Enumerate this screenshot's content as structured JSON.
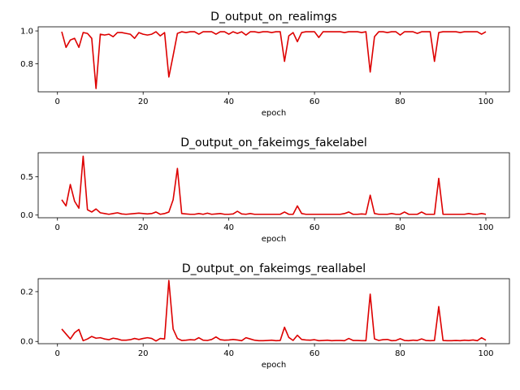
{
  "chart_data": [
    {
      "type": "line",
      "title": "D_output_on_realimgs",
      "xlabel": "epoch",
      "ylabel": "",
      "xlim": [
        -4.5,
        105.5
      ],
      "ylim": [
        0.63,
        1.025
      ],
      "xticks": [
        0,
        20,
        40,
        60,
        80,
        100
      ],
      "yticks": [
        0.8,
        1.0
      ],
      "xtick_labels": [
        "0",
        "20",
        "40",
        "60",
        "80",
        "100"
      ],
      "ytick_labels": [
        "0.8",
        "1.0"
      ],
      "grid": false,
      "color": "#dd0000",
      "x": [
        1,
        2,
        3,
        4,
        5,
        6,
        7,
        8,
        9,
        10,
        11,
        12,
        13,
        14,
        15,
        16,
        17,
        18,
        19,
        20,
        21,
        22,
        23,
        24,
        25,
        26,
        27,
        28,
        29,
        30,
        31,
        32,
        33,
        34,
        35,
        36,
        37,
        38,
        39,
        40,
        41,
        42,
        43,
        44,
        45,
        46,
        47,
        48,
        49,
        50,
        51,
        52,
        53,
        54,
        55,
        56,
        57,
        58,
        59,
        60,
        61,
        62,
        63,
        64,
        65,
        66,
        67,
        68,
        69,
        70,
        71,
        72,
        73,
        74,
        75,
        76,
        77,
        78,
        79,
        80,
        81,
        82,
        83,
        84,
        85,
        86,
        87,
        88,
        89,
        90,
        91,
        92,
        93,
        94,
        95,
        96,
        97,
        98,
        99,
        100
      ],
      "values": [
        0.995,
        0.9,
        0.945,
        0.955,
        0.9,
        0.99,
        0.985,
        0.955,
        0.65,
        0.98,
        0.975,
        0.98,
        0.965,
        0.99,
        0.99,
        0.985,
        0.98,
        0.955,
        0.99,
        0.98,
        0.975,
        0.98,
        0.995,
        0.97,
        0.99,
        0.72,
        0.85,
        0.985,
        0.995,
        0.99,
        0.995,
        0.995,
        0.98,
        0.995,
        0.995,
        0.995,
        0.98,
        0.995,
        0.995,
        0.98,
        0.995,
        0.985,
        0.995,
        0.975,
        0.995,
        0.995,
        0.99,
        0.995,
        0.995,
        0.99,
        0.995,
        0.995,
        0.815,
        0.97,
        0.99,
        0.935,
        0.99,
        0.995,
        0.995,
        0.995,
        0.96,
        0.995,
        0.995,
        0.995,
        0.995,
        0.995,
        0.99,
        0.995,
        0.995,
        0.995,
        0.99,
        0.995,
        0.75,
        0.965,
        0.995,
        0.995,
        0.99,
        0.995,
        0.995,
        0.975,
        0.995,
        0.995,
        0.995,
        0.985,
        0.995,
        0.995,
        0.995,
        0.815,
        0.99,
        0.995,
        0.995,
        0.995,
        0.995,
        0.99,
        0.995,
        0.995,
        0.995,
        0.995,
        0.98,
        0.995
      ]
    },
    {
      "type": "line",
      "title": "D_output_on_fakeimgs_fakelabel",
      "xlabel": "epoch",
      "ylabel": "",
      "xlim": [
        -4.5,
        105.5
      ],
      "ylim": [
        -0.035,
        0.815
      ],
      "xticks": [
        0,
        20,
        40,
        60,
        80,
        100
      ],
      "yticks": [
        0.0,
        0.5
      ],
      "xtick_labels": [
        "0",
        "20",
        "40",
        "60",
        "80",
        "100"
      ],
      "ytick_labels": [
        "0.0",
        "0.5"
      ],
      "grid": false,
      "color": "#dd0000",
      "x": [
        1,
        2,
        3,
        4,
        5,
        6,
        7,
        8,
        9,
        10,
        11,
        12,
        13,
        14,
        15,
        16,
        17,
        18,
        19,
        20,
        21,
        22,
        23,
        24,
        25,
        26,
        27,
        28,
        29,
        30,
        31,
        32,
        33,
        34,
        35,
        36,
        37,
        38,
        39,
        40,
        41,
        42,
        43,
        44,
        45,
        46,
        47,
        48,
        49,
        50,
        51,
        52,
        53,
        54,
        55,
        56,
        57,
        58,
        59,
        60,
        61,
        62,
        63,
        64,
        65,
        66,
        67,
        68,
        69,
        70,
        71,
        72,
        73,
        74,
        75,
        76,
        77,
        78,
        79,
        80,
        81,
        82,
        83,
        84,
        85,
        86,
        87,
        88,
        89,
        90,
        91,
        92,
        93,
        94,
        95,
        96,
        97,
        98,
        99,
        100
      ],
      "values": [
        0.2,
        0.12,
        0.4,
        0.18,
        0.09,
        0.77,
        0.07,
        0.04,
        0.08,
        0.03,
        0.02,
        0.01,
        0.02,
        0.03,
        0.015,
        0.01,
        0.015,
        0.02,
        0.025,
        0.02,
        0.015,
        0.02,
        0.04,
        0.01,
        0.02,
        0.04,
        0.2,
        0.61,
        0.02,
        0.015,
        0.01,
        0.01,
        0.02,
        0.01,
        0.025,
        0.01,
        0.015,
        0.02,
        0.01,
        0.01,
        0.015,
        0.05,
        0.015,
        0.01,
        0.02,
        0.01,
        0.01,
        0.01,
        0.01,
        0.01,
        0.01,
        0.01,
        0.04,
        0.01,
        0.01,
        0.12,
        0.02,
        0.01,
        0.01,
        0.01,
        0.01,
        0.01,
        0.01,
        0.01,
        0.01,
        0.01,
        0.02,
        0.04,
        0.01,
        0.01,
        0.015,
        0.01,
        0.26,
        0.02,
        0.01,
        0.01,
        0.01,
        0.02,
        0.01,
        0.01,
        0.04,
        0.01,
        0.01,
        0.01,
        0.04,
        0.01,
        0.01,
        0.01,
        0.48,
        0.01,
        0.01,
        0.01,
        0.01,
        0.01,
        0.01,
        0.02,
        0.01,
        0.01,
        0.02,
        0.01
      ]
    },
    {
      "type": "line",
      "title": "D_output_on_fakeimgs_reallabel",
      "xlabel": "epoch",
      "ylabel": "",
      "xlim": [
        -4.5,
        105.5
      ],
      "ylim": [
        -0.009,
        0.252
      ],
      "xticks": [
        0,
        20,
        40,
        60,
        80,
        100
      ],
      "yticks": [
        0.0,
        0.2
      ],
      "xtick_labels": [
        "0",
        "20",
        "40",
        "60",
        "80",
        "100"
      ],
      "ytick_labels": [
        "0.0",
        "0.2"
      ],
      "grid": false,
      "color": "#dd0000",
      "x": [
        1,
        2,
        3,
        4,
        5,
        6,
        7,
        8,
        9,
        10,
        11,
        12,
        13,
        14,
        15,
        16,
        17,
        18,
        19,
        20,
        21,
        22,
        23,
        24,
        25,
        26,
        27,
        28,
        29,
        30,
        31,
        32,
        33,
        34,
        35,
        36,
        37,
        38,
        39,
        40,
        41,
        42,
        43,
        44,
        45,
        46,
        47,
        48,
        49,
        50,
        51,
        52,
        53,
        54,
        55,
        56,
        57,
        58,
        59,
        60,
        61,
        62,
        63,
        64,
        65,
        66,
        67,
        68,
        69,
        70,
        71,
        72,
        73,
        74,
        75,
        76,
        77,
        78,
        79,
        80,
        81,
        82,
        83,
        84,
        85,
        86,
        87,
        88,
        89,
        90,
        91,
        92,
        93,
        94,
        95,
        96,
        97,
        98,
        99,
        100
      ],
      "values": [
        0.05,
        0.03,
        0.01,
        0.035,
        0.048,
        0.003,
        0.01,
        0.02,
        0.013,
        0.015,
        0.01,
        0.007,
        0.013,
        0.01,
        0.005,
        0.005,
        0.007,
        0.012,
        0.008,
        0.012,
        0.015,
        0.012,
        0.002,
        0.012,
        0.01,
        0.245,
        0.05,
        0.012,
        0.004,
        0.005,
        0.007,
        0.006,
        0.015,
        0.005,
        0.004,
        0.008,
        0.018,
        0.007,
        0.005,
        0.006,
        0.008,
        0.006,
        0.003,
        0.015,
        0.01,
        0.005,
        0.003,
        0.003,
        0.004,
        0.005,
        0.003,
        0.004,
        0.057,
        0.016,
        0.004,
        0.025,
        0.008,
        0.006,
        0.005,
        0.007,
        0.003,
        0.004,
        0.005,
        0.003,
        0.004,
        0.004,
        0.003,
        0.012,
        0.004,
        0.004,
        0.003,
        0.003,
        0.19,
        0.01,
        0.004,
        0.007,
        0.008,
        0.003,
        0.004,
        0.011,
        0.004,
        0.003,
        0.005,
        0.004,
        0.01,
        0.004,
        0.003,
        0.004,
        0.14,
        0.004,
        0.003,
        0.003,
        0.004,
        0.003,
        0.005,
        0.004,
        0.006,
        0.003,
        0.015,
        0.005
      ]
    }
  ]
}
